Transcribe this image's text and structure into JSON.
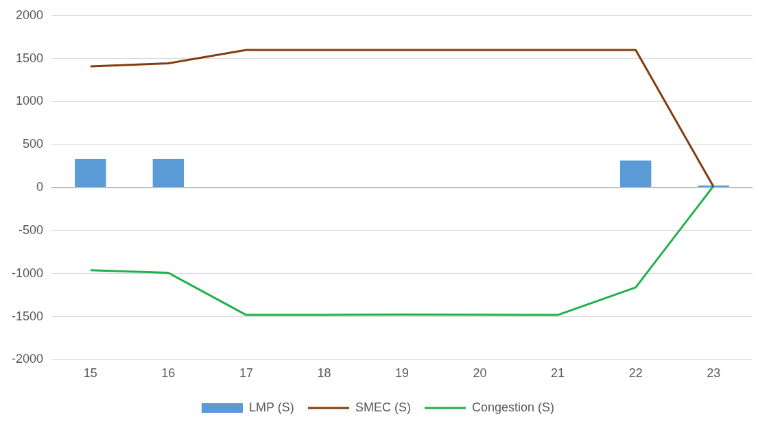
{
  "chart_data": {
    "type": "bar",
    "categories": [
      "15",
      "16",
      "17",
      "18",
      "19",
      "20",
      "21",
      "22",
      "23"
    ],
    "series": [
      {
        "name": "LMP (S)",
        "color": "#5b9bd5",
        "values": [
          335,
          335,
          null,
          null,
          null,
          null,
          null,
          315,
          25
        ]
      },
      {
        "name": "SMEC (S)",
        "type": "line",
        "color": "#843c0c",
        "values": [
          1410,
          1445,
          1600,
          1600,
          1600,
          1600,
          1600,
          1600,
          10
        ]
      },
      {
        "name": "Congestion (S)",
        "type": "line",
        "color": "#21b04b",
        "values": [
          -960,
          -990,
          -1480,
          -1480,
          -1475,
          -1478,
          -1480,
          -1160,
          20
        ]
      }
    ],
    "ylim": [
      -2000,
      2000
    ],
    "yticks": [
      -2000,
      -1500,
      -1000,
      -500,
      0,
      500,
      1000,
      1500,
      2000
    ],
    "grid": "y",
    "legend": "bottom",
    "marker": "none"
  }
}
